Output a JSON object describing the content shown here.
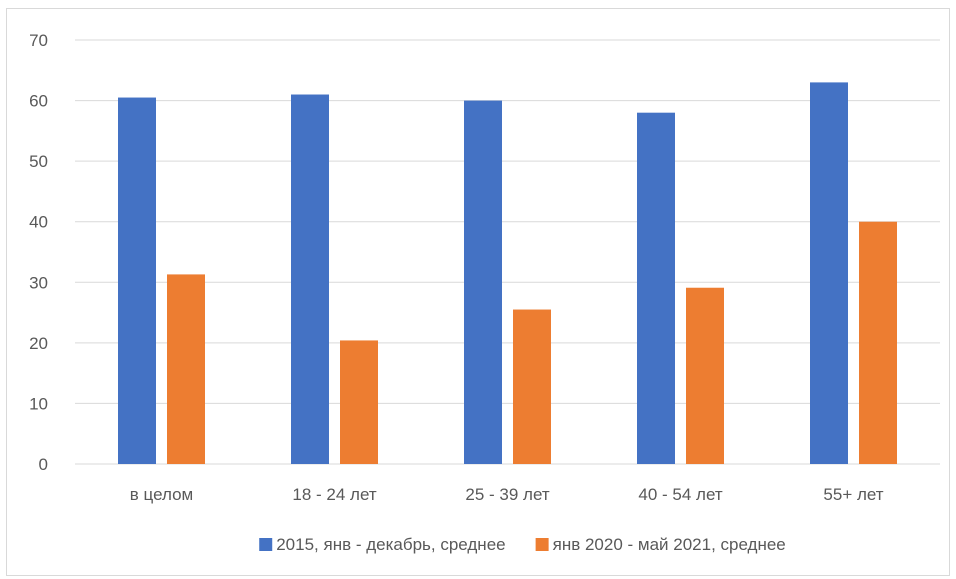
{
  "chart_data": {
    "type": "bar",
    "title": "",
    "xlabel": "",
    "ylabel": "",
    "categories": [
      "в целом",
      "18 - 24 лет",
      "25 - 39 лет",
      "40 - 54 лет",
      "55+ лет"
    ],
    "series": [
      {
        "name": "2015, янв - декабрь, среднее",
        "color": "#4472c4",
        "values": [
          60.5,
          61,
          60,
          58,
          63
        ]
      },
      {
        "name": "янв 2020 - май 2021, среднее",
        "color": "#ed7d31",
        "values": [
          31.3,
          20.4,
          25.5,
          29.1,
          40
        ]
      }
    ],
    "ylim": [
      0,
      70
    ],
    "yticks": [
      0,
      10,
      20,
      30,
      40,
      50,
      60,
      70
    ],
    "grid": true,
    "legend_position": "bottom"
  }
}
